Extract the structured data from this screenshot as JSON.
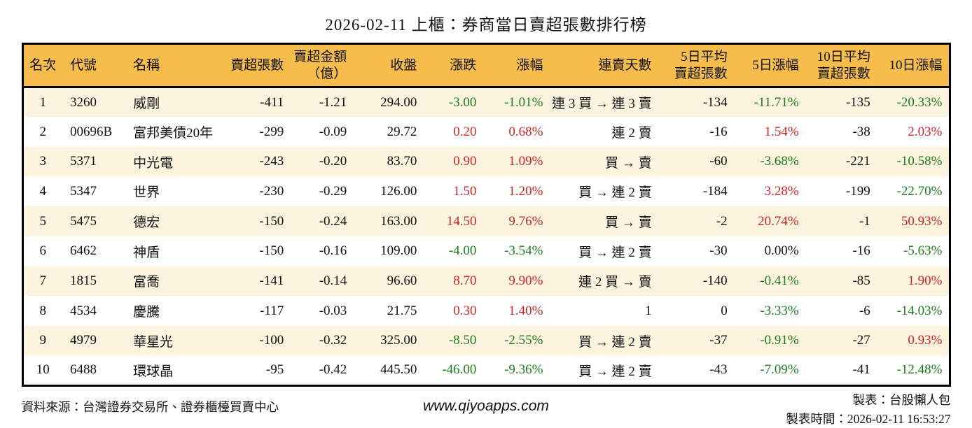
{
  "title": "2026-02-11 上櫃：券商當日賣超張數排行榜",
  "chart_data": {
    "type": "table",
    "title": "2026-02-11 上櫃：券商當日賣超張數排行榜",
    "columns": [
      "名次",
      "代號",
      "名稱",
      "賣超張數",
      "賣超金額\n（億）",
      "收盤",
      "漲跌",
      "漲幅",
      "連賣天數",
      "5日平均\n賣超張數",
      "5日漲幅",
      "10日平均\n賣超張數",
      "10日漲幅"
    ],
    "rows": [
      [
        "1",
        "3260",
        "威剛",
        "-411",
        "-1.21",
        "294.00",
        {
          "t": "-3.00",
          "c": "g"
        },
        {
          "t": "-1.01%",
          "c": "g"
        },
        "連 3 買 → 連 3 賣",
        "-134",
        {
          "t": "-11.71%",
          "c": "g"
        },
        "-135",
        {
          "t": "-20.33%",
          "c": "g"
        }
      ],
      [
        "2",
        "00696B",
        "富邦美債20年",
        "-299",
        "-0.09",
        "29.72",
        {
          "t": "0.20",
          "c": "r"
        },
        {
          "t": "0.68%",
          "c": "r"
        },
        "連 2 賣",
        "-16",
        {
          "t": "1.54%",
          "c": "r"
        },
        "-38",
        {
          "t": "2.03%",
          "c": "r"
        }
      ],
      [
        "3",
        "5371",
        "中光電",
        "-243",
        "-0.20",
        "83.70",
        {
          "t": "0.90",
          "c": "r"
        },
        {
          "t": "1.09%",
          "c": "r"
        },
        "買 → 賣",
        "-60",
        {
          "t": "-3.68%",
          "c": "g"
        },
        "-221",
        {
          "t": "-10.58%",
          "c": "g"
        }
      ],
      [
        "4",
        "5347",
        "世界",
        "-230",
        "-0.29",
        "126.00",
        {
          "t": "1.50",
          "c": "r"
        },
        {
          "t": "1.20%",
          "c": "r"
        },
        "買 → 連 2 賣",
        "-184",
        {
          "t": "3.28%",
          "c": "r"
        },
        "-199",
        {
          "t": "-22.70%",
          "c": "g"
        }
      ],
      [
        "5",
        "5475",
        "德宏",
        "-150",
        "-0.24",
        "163.00",
        {
          "t": "14.50",
          "c": "r"
        },
        {
          "t": "9.76%",
          "c": "r"
        },
        "買 → 賣",
        "-2",
        {
          "t": "20.74%",
          "c": "r"
        },
        "-1",
        {
          "t": "50.93%",
          "c": "r"
        }
      ],
      [
        "6",
        "6462",
        "神盾",
        "-150",
        "-0.16",
        "109.00",
        {
          "t": "-4.00",
          "c": "g"
        },
        {
          "t": "-3.54%",
          "c": "g"
        },
        "買 → 連 2 賣",
        "-30",
        "0.00%",
        "-16",
        {
          "t": "-5.63%",
          "c": "g"
        }
      ],
      [
        "7",
        "1815",
        "富喬",
        "-141",
        "-0.14",
        "96.60",
        {
          "t": "8.70",
          "c": "r"
        },
        {
          "t": "9.90%",
          "c": "r"
        },
        "連 2 買 → 賣",
        "-140",
        {
          "t": "-0.41%",
          "c": "g"
        },
        "-85",
        {
          "t": "1.90%",
          "c": "r"
        }
      ],
      [
        "8",
        "4534",
        "慶騰",
        "-117",
        "-0.03",
        "21.75",
        {
          "t": "0.30",
          "c": "r"
        },
        {
          "t": "1.40%",
          "c": "r"
        },
        "1",
        "0",
        {
          "t": "-3.33%",
          "c": "g"
        },
        "-6",
        {
          "t": "-14.03%",
          "c": "g"
        }
      ],
      [
        "9",
        "4979",
        "華星光",
        "-100",
        "-0.32",
        "325.00",
        {
          "t": "-8.50",
          "c": "g"
        },
        {
          "t": "-2.55%",
          "c": "g"
        },
        "買 → 連 2 賣",
        "-37",
        {
          "t": "-0.91%",
          "c": "g"
        },
        "-27",
        {
          "t": "0.93%",
          "c": "r"
        }
      ],
      [
        "10",
        "6488",
        "環球晶",
        "-95",
        "-0.42",
        "445.50",
        {
          "t": "-46.00",
          "c": "g"
        },
        {
          "t": "-9.36%",
          "c": "g"
        },
        "買 → 連 2 賣",
        "-43",
        {
          "t": "-7.09%",
          "c": "g"
        },
        "-41",
        {
          "t": "-12.48%",
          "c": "g"
        }
      ]
    ],
    "legend": {
      "red_means": "上漲",
      "green_means": "下跌"
    }
  },
  "footer": {
    "source": "資料來源：台灣證券交易所、證券櫃檯買賣中心",
    "website": "www.qiyoapps.com",
    "maker": "製表：台股懶人包",
    "made_at": "製表時間：2026-02-11 16:53:27"
  },
  "colors": {
    "header_bg": "#f6bd4c",
    "row_alt_bg": "#fdf4e0",
    "up_red": "#d02323",
    "down_green": "#1b7c1b",
    "border": "#000000"
  }
}
